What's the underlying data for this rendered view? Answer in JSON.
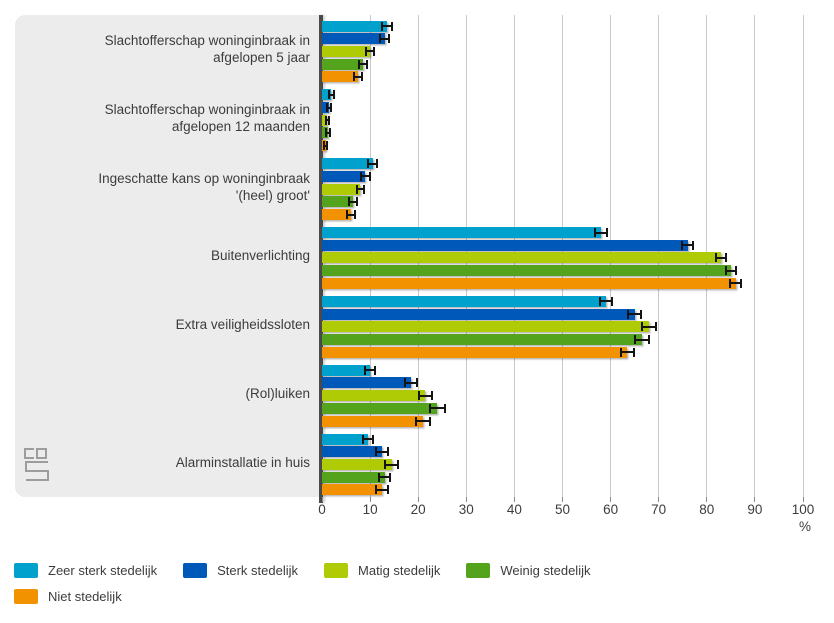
{
  "chart_data": {
    "type": "bar",
    "orientation": "horizontal",
    "title": "",
    "xlabel": "%",
    "xlim": [
      0,
      100
    ],
    "xticks": [
      0,
      10,
      20,
      30,
      40,
      50,
      60,
      70,
      80,
      90,
      100
    ],
    "grid": true,
    "error_bars": true,
    "legend_position": "bottom",
    "categories": [
      "Slachtofferschap woninginbraak in afgelopen 5 jaar",
      "Slachtofferschap woninginbraak in afgelopen 12 maanden",
      "Ingeschatte kans op woninginbraak '(heel) groot'",
      "Buitenverlichting",
      "Extra veiligheidssloten",
      "(Rol)luiken",
      "Alarminstallatie in huis"
    ],
    "series": [
      {
        "name": "Zeer sterk stedelijk",
        "color": "#00a1cd",
        "values": [
          13.5,
          1.9,
          10.5,
          58,
          59,
          10,
          9.5
        ],
        "errors": [
          1.0,
          0.5,
          0.9,
          1.3,
          1.3,
          1.0,
          1.0
        ]
      },
      {
        "name": "Sterk stedelijk",
        "color": "#0058b8",
        "values": [
          13,
          1.5,
          9,
          76,
          65,
          18.5,
          12.5
        ],
        "errors": [
          1.0,
          0.4,
          0.9,
          1.2,
          1.4,
          1.3,
          1.2
        ]
      },
      {
        "name": "Matig stedelijk",
        "color": "#afcb05",
        "values": [
          10,
          1.1,
          8,
          83,
          68,
          21.5,
          14.5
        ],
        "errors": [
          0.9,
          0.3,
          0.8,
          1.0,
          1.5,
          1.4,
          1.3
        ]
      },
      {
        "name": "Weinig stedelijk",
        "color": "#53a31d",
        "values": [
          8.5,
          1.2,
          6.5,
          85,
          66.5,
          24,
          13
        ],
        "errors": [
          0.9,
          0.4,
          0.8,
          1.0,
          1.4,
          1.5,
          1.2
        ]
      },
      {
        "name": "Niet stedelijk",
        "color": "#f39200",
        "values": [
          7.5,
          0.8,
          6,
          86,
          63.5,
          21,
          12.5
        ],
        "errors": [
          0.9,
          0.3,
          0.8,
          1.2,
          1.4,
          1.4,
          1.2
        ]
      }
    ]
  },
  "branding": {
    "logo": "cbs-logo",
    "logo_color": "#9d9d9c"
  },
  "legend_rows": [
    [
      0,
      1,
      2,
      3
    ],
    [
      4
    ]
  ]
}
